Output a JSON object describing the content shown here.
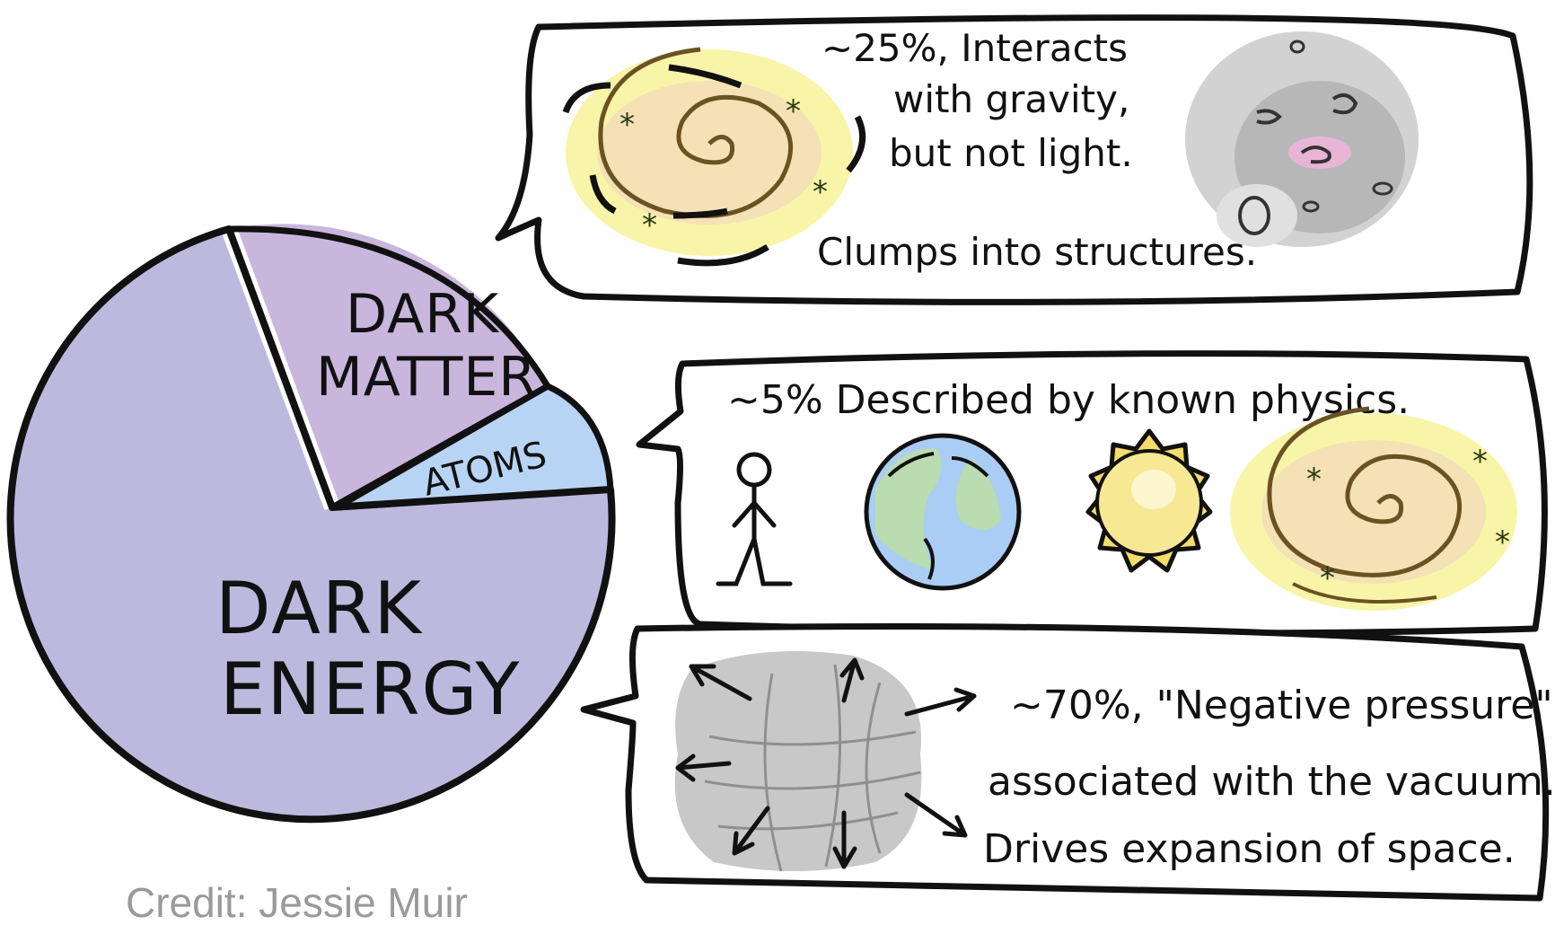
{
  "pie": {
    "slices": [
      {
        "label_lines": [
          "DARK",
          "MATTER"
        ],
        "value": 25,
        "color": "#c9b6dd"
      },
      {
        "label_lines": [
          "ATOMS"
        ],
        "value": 5,
        "color": "#b8d4f4"
      },
      {
        "label_lines": [
          "DARK",
          "ENERGY"
        ],
        "value": 70,
        "color": "#b9b5dc"
      }
    ]
  },
  "bubbles": {
    "dark_matter": {
      "lines": [
        "~25%, Interacts",
        "with gravity,",
        "but not light."
      ],
      "note": "Clumps into structures."
    },
    "atoms": {
      "text": "~5% Described by known physics."
    },
    "dark_energy": {
      "lines": [
        "~70%, \"Negative pressure\"",
        "associated with the vacuum.",
        "Drives expansion of space."
      ]
    }
  },
  "credit": "Credit: Jessie Muir",
  "colors": {
    "ink": "#111111",
    "galaxy_yellow": "#f7f39a",
    "galaxy_pink": "#e5a7c9",
    "earth_blue": "#a9cdf5",
    "earth_green": "#b9dcb0",
    "sun_yellow": "#f4dc6a",
    "cloud_gray": "#c8c8c8"
  },
  "icons": [
    "spiral-galaxy-icon",
    "galaxy-cluster-icon",
    "stick-figure-icon",
    "earth-icon",
    "sun-icon",
    "expanding-space-icon"
  ]
}
